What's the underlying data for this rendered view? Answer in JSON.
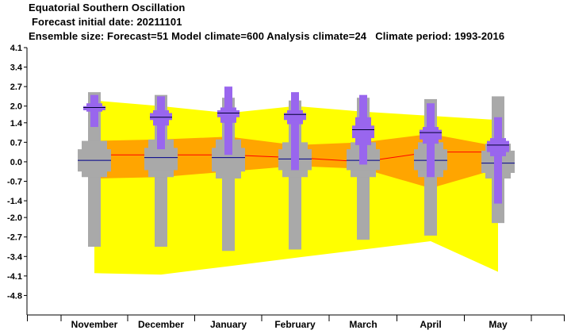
{
  "header": {
    "title": "Equatorial Southern Oscillation",
    "initial_date": "Forecast initial date: 20211101",
    "ensemble": "Ensemble size: Forecast=51 Model climate=600 Analysis climate=24   Climate period: 1993-2016"
  },
  "colors": {
    "climate_outer": "#ffff00",
    "climate_inner": "#ffa500",
    "climate_median": "#ff0000",
    "model_box": "#a9a9a9",
    "model_median": "#00008b",
    "forecast_box": "#9966ee",
    "forecast_median": "#000033"
  },
  "chart_data": {
    "type": "boxplot",
    "title": "Equatorial Southern Oscillation",
    "ylim": [
      -5.5,
      4.1
    ],
    "yticks": [
      "4.1",
      "3.4",
      "2.7",
      "2.0",
      "1.4",
      "0.7",
      "0.0",
      "-0.7",
      "-1.4",
      "-2.0",
      "-2.7",
      "-3.4",
      "-4.1",
      "-4.8"
    ],
    "ytick_values": [
      4.1,
      3.4,
      2.7,
      2.0,
      1.4,
      0.7,
      0.0,
      -0.7,
      -1.4,
      -2.0,
      -2.7,
      -3.4,
      -4.1,
      -4.8
    ],
    "categories": [
      "November",
      "December",
      "January",
      "February",
      "March",
      "April",
      "May"
    ],
    "analysis_climate": {
      "outer_upper": [
        2.2,
        2.0,
        1.75,
        2.0,
        1.8,
        1.65,
        1.5
      ],
      "outer_lower": [
        -4.0,
        -4.05,
        -3.75,
        -3.45,
        -3.15,
        -2.85,
        -3.95
      ],
      "inner_upper": [
        0.75,
        0.8,
        0.9,
        0.6,
        0.7,
        1.0,
        0.55
      ],
      "inner_lower": [
        -0.6,
        -0.55,
        -0.35,
        -0.15,
        -0.25,
        -0.95,
        -0.25
      ],
      "median": [
        0.25,
        0.25,
        0.25,
        0.15,
        0.0,
        0.35,
        0.35
      ]
    },
    "model_climate": {
      "max": [
        2.5,
        2.4,
        2.3,
        2.2,
        2.3,
        2.25,
        2.35
      ],
      "q90": [
        0.75,
        0.8,
        0.8,
        0.7,
        0.7,
        0.7,
        0.65
      ],
      "q75": [
        0.45,
        0.5,
        0.5,
        0.45,
        0.45,
        0.45,
        0.4
      ],
      "median": [
        0.05,
        0.15,
        0.15,
        0.1,
        0.05,
        0.05,
        -0.05
      ],
      "q25": [
        -0.35,
        -0.3,
        -0.35,
        -0.3,
        -0.3,
        -0.3,
        -0.4
      ],
      "q10": [
        -0.55,
        -0.55,
        -0.6,
        -0.55,
        -0.55,
        -0.55,
        -0.6
      ],
      "min": [
        -3.05,
        -3.05,
        -3.2,
        -3.15,
        -2.8,
        -2.65,
        -2.2
      ]
    },
    "forecast": {
      "max": [
        2.4,
        2.35,
        2.7,
        2.5,
        2.4,
        2.1,
        1.6
      ],
      "q90": [
        2.1,
        1.85,
        1.95,
        1.85,
        1.6,
        1.25,
        0.85
      ],
      "q75": [
        2.0,
        1.75,
        1.85,
        1.75,
        1.3,
        1.15,
        0.75
      ],
      "median": [
        1.95,
        1.6,
        1.75,
        1.7,
        1.15,
        1.05,
        0.6
      ],
      "q25": [
        1.85,
        1.5,
        1.6,
        1.5,
        0.85,
        0.8,
        0.35
      ],
      "q10": [
        1.8,
        1.3,
        1.4,
        1.35,
        0.6,
        0.65,
        0.2
      ],
      "min": [
        1.25,
        0.45,
        0.25,
        -0.3,
        -0.1,
        -0.55,
        -1.5
      ]
    }
  }
}
